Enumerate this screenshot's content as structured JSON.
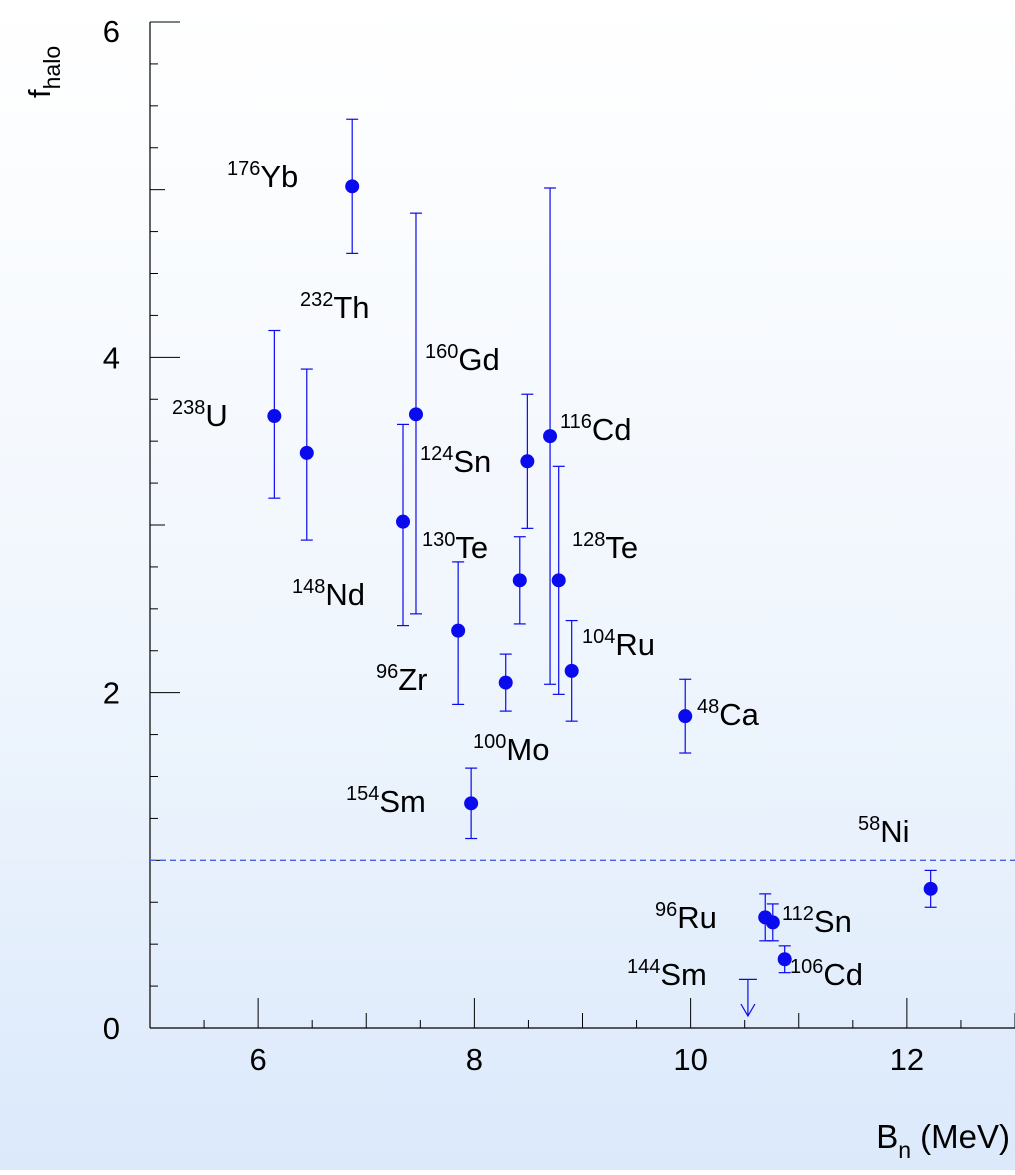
{
  "chart_data": {
    "type": "scatter",
    "xlabel": {
      "main": "B",
      "sub": "n",
      "rest": " (MeV)"
    },
    "ylabel": {
      "main": "f",
      "sub": "halo"
    },
    "xlim": [
      5,
      13
    ],
    "ylim": [
      0,
      6
    ],
    "x_ticks": [
      6,
      8,
      10,
      12
    ],
    "x_tick_labels": [
      "6",
      "8",
      "10",
      "12"
    ],
    "y_ticks": [
      0,
      2,
      4,
      6
    ],
    "y_tick_labels": [
      "0",
      "2",
      "4",
      "6"
    ],
    "grid": false,
    "reference_line": {
      "y": 1.0,
      "style": "dashed"
    },
    "colors": {
      "marker": "#0a0aee",
      "reference_line": "#4a62d8",
      "axis": "#000000"
    },
    "points": [
      {
        "mass": "176",
        "element": "Yb",
        "x": 6.87,
        "y": 5.02,
        "y_low": 4.62,
        "y_high": 5.42
      },
      {
        "mass": "238",
        "element": "U",
        "x": 6.15,
        "y": 3.65,
        "y_low": 3.16,
        "y_high": 4.16
      },
      {
        "mass": "232",
        "element": "Th",
        "x": 6.45,
        "y": 3.43,
        "y_low": 2.91,
        "y_high": 3.93
      },
      {
        "mass": "160",
        "element": "Gd",
        "x": 7.46,
        "y": 3.66,
        "y_low": 2.47,
        "y_high": 4.86
      },
      {
        "mass": "148",
        "element": "Nd",
        "x": 7.34,
        "y": 3.02,
        "y_low": 2.4,
        "y_high": 3.6
      },
      {
        "mass": "96",
        "element": "Zr",
        "x": 7.85,
        "y": 2.37,
        "y_low": 1.93,
        "y_high": 2.78
      },
      {
        "mass": "154",
        "element": "Sm",
        "x": 7.97,
        "y": 1.34,
        "y_low": 1.13,
        "y_high": 1.55
      },
      {
        "mass": "124",
        "element": "Sn",
        "x": 8.49,
        "y": 3.38,
        "y_low": 2.98,
        "y_high": 3.78
      },
      {
        "mass": "130",
        "element": "Te",
        "x": 8.42,
        "y": 2.67,
        "y_low": 2.41,
        "y_high": 2.93
      },
      {
        "mass": "100",
        "element": "Mo",
        "x": 8.29,
        "y": 2.06,
        "y_low": 1.89,
        "y_high": 2.23
      },
      {
        "mass": "116",
        "element": "Cd",
        "x": 8.7,
        "y": 3.53,
        "y_low": 2.05,
        "y_high": 5.01
      },
      {
        "mass": "128",
        "element": "Te",
        "x": 8.78,
        "y": 2.67,
        "y_low": 1.99,
        "y_high": 3.35
      },
      {
        "mass": "104",
        "element": "Ru",
        "x": 8.9,
        "y": 2.13,
        "y_low": 1.83,
        "y_high": 2.43
      },
      {
        "mass": "48",
        "element": "Ca",
        "x": 9.95,
        "y": 1.86,
        "y_low": 1.64,
        "y_high": 2.08
      },
      {
        "mass": "58",
        "element": "Ni",
        "x": 12.22,
        "y": 0.83,
        "y_low": 0.72,
        "y_high": 0.94
      },
      {
        "mass": "96",
        "element": "Ru",
        "x": 10.69,
        "y": 0.66,
        "y_low": 0.52,
        "y_high": 0.8
      },
      {
        "mass": "112",
        "element": "Sn",
        "x": 10.76,
        "y": 0.63,
        "y_low": 0.52,
        "y_high": 0.74
      },
      {
        "mass": "106",
        "element": "Cd",
        "x": 10.87,
        "y": 0.41,
        "y_low": 0.33,
        "y_high": 0.49
      }
    ],
    "upper_limits": [
      {
        "mass": "144",
        "element": "Sm",
        "x": 10.53,
        "y": 0.29
      }
    ]
  }
}
